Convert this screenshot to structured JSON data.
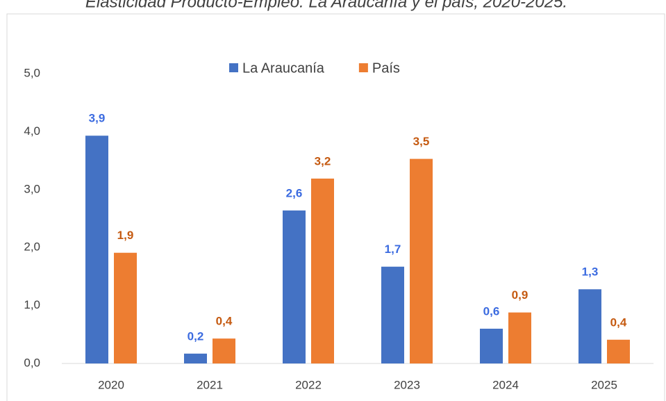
{
  "chart_data": {
    "type": "bar",
    "title": "Elasticidad Producto-Empleo: La Araucanía y el país, 2020-2025.",
    "categories": [
      "2020",
      "2021",
      "2022",
      "2023",
      "2024",
      "2025"
    ],
    "series": [
      {
        "name": "La Araucanía",
        "color": "#4472c4",
        "label_color": "#3b6be0",
        "values": [
          3.93,
          0.17,
          2.64,
          1.67,
          0.6,
          1.28
        ],
        "value_labels": [
          "3,9",
          "0,2",
          "2,6",
          "1,7",
          "0,6",
          "1,3"
        ]
      },
      {
        "name": "País",
        "color": "#ed7d31",
        "label_color": "#c55a11",
        "values": [
          1.91,
          0.43,
          3.19,
          3.53,
          0.88,
          0.41
        ],
        "value_labels": [
          "1,9",
          "0,4",
          "3,2",
          "3,5",
          "0,9",
          "0,4"
        ]
      }
    ],
    "ylim": [
      0,
      5
    ],
    "yticks": [
      {
        "value": 0,
        "label": "0,0"
      },
      {
        "value": 1,
        "label": "1,0"
      },
      {
        "value": 2,
        "label": "2,0"
      },
      {
        "value": 3,
        "label": "3,0"
      },
      {
        "value": 4,
        "label": "4,0"
      },
      {
        "value": 5,
        "label": "5,0"
      }
    ],
    "grid": false,
    "legend": "top"
  }
}
